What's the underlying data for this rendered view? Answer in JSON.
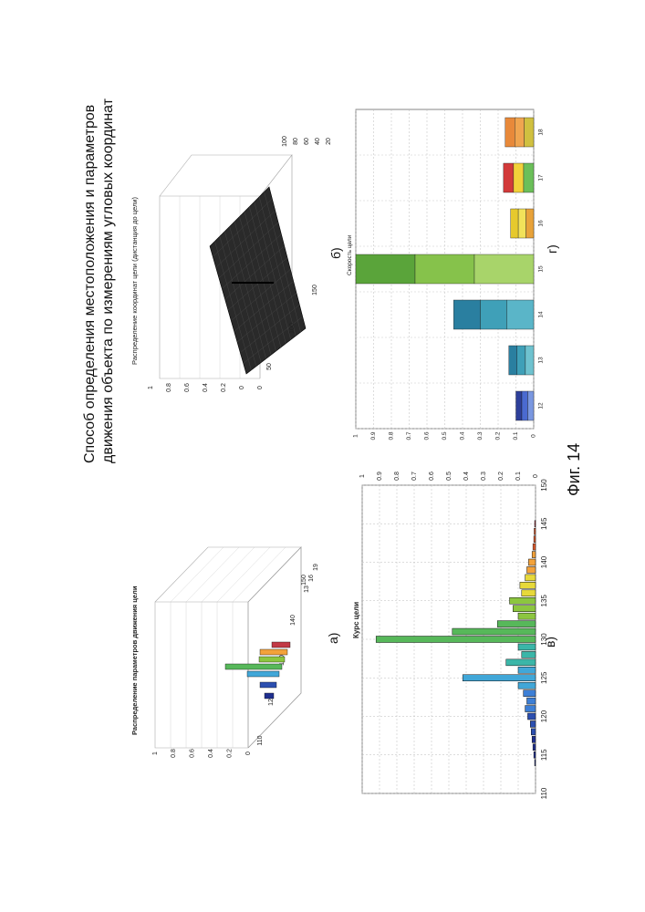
{
  "page": {
    "title_line1": "Способ определения местоположения и параметров",
    "title_line2": "движения объекта по измерениям угловых координат",
    "figure_caption": "Фиг. 14"
  },
  "panel_a": {
    "label": "а)",
    "title": "Распределение параметров движения цели",
    "z_ticks": [
      "0",
      "0.2",
      "0.4",
      "0.6",
      "0.8",
      "1"
    ],
    "x_ticks": [
      "110",
      "120",
      "130",
      "140",
      "150"
    ],
    "y_ticks": [
      "13",
      "16",
      "19"
    ]
  },
  "panel_b": {
    "label": "б)",
    "title": "Распределение координат цели (дистанция до цели)",
    "z_ticks": [
      "0",
      "0",
      "0.2",
      "0.4",
      "0.6",
      "0.8",
      "1"
    ],
    "x_ticks": [
      "150",
      "100",
      "50"
    ],
    "y_ticks": [
      "100",
      "80",
      "60",
      "40",
      "20"
    ]
  },
  "panel_v": {
    "label": "в)",
    "title": "Курс цели",
    "x_ticks": [
      "110",
      "115",
      "120",
      "125",
      "130",
      "135",
      "140",
      "145",
      "150"
    ],
    "y_ticks": [
      "0",
      "0.1",
      "0.2",
      "0.3",
      "0.4",
      "0.5",
      "0.6",
      "0.7",
      "0.8",
      "0.9",
      "1"
    ]
  },
  "panel_g": {
    "label": "г)",
    "title": "Скорость цели",
    "x_ticks": [
      "12",
      "13",
      "14",
      "15",
      "16",
      "17",
      "18"
    ],
    "y_ticks": [
      "0",
      "0.1",
      "0.2",
      "0.3",
      "0.4",
      "0.5",
      "0.6",
      "0.7",
      "0.8",
      "0.9",
      "1"
    ]
  },
  "chart_data": [
    {
      "type": "bar",
      "title": "Курс цели",
      "xlabel": "",
      "ylabel": "",
      "ylim": [
        0,
        1
      ],
      "xlim": [
        110,
        150
      ],
      "x": [
        114,
        115,
        116,
        117,
        118,
        119,
        120,
        121,
        122,
        123,
        124,
        125,
        126,
        127,
        128,
        129,
        130,
        131,
        132,
        133,
        134,
        135,
        136,
        137,
        138,
        139,
        140,
        141,
        142,
        143,
        144,
        145
      ],
      "values": [
        0.005,
        0.01,
        0.015,
        0.02,
        0.025,
        0.03,
        0.045,
        0.06,
        0.05,
        0.07,
        0.1,
        0.42,
        0.1,
        0.17,
        0.08,
        0.1,
        0.92,
        0.48,
        0.22,
        0.1,
        0.13,
        0.15,
        0.08,
        0.09,
        0.06,
        0.05,
        0.04,
        0.02,
        0.015,
        0.01,
        0.008,
        0.005
      ]
    },
    {
      "type": "bar",
      "title": "Скорость цели",
      "xlabel": "",
      "ylabel": "",
      "ylim": [
        0,
        1
      ],
      "categories": [
        "12",
        "13",
        "14",
        "15",
        "16",
        "17",
        "18"
      ],
      "values": [
        0.1,
        0.14,
        0.45,
        1.0,
        0.13,
        0.17,
        0.16
      ]
    },
    {
      "type": "bar",
      "title": "Распределение параметров движения цели",
      "zlim": [
        0,
        1
      ],
      "x": [
        123,
        126,
        129,
        131,
        133,
        135,
        137
      ],
      "values": [
        0.1,
        0.18,
        0.35,
        0.62,
        0.28,
        0.3,
        0.2
      ]
    },
    {
      "type": "area",
      "title": "Распределение координат цели (дистанция до цели)",
      "zlim": [
        0,
        1
      ],
      "peak": 0.4
    }
  ]
}
